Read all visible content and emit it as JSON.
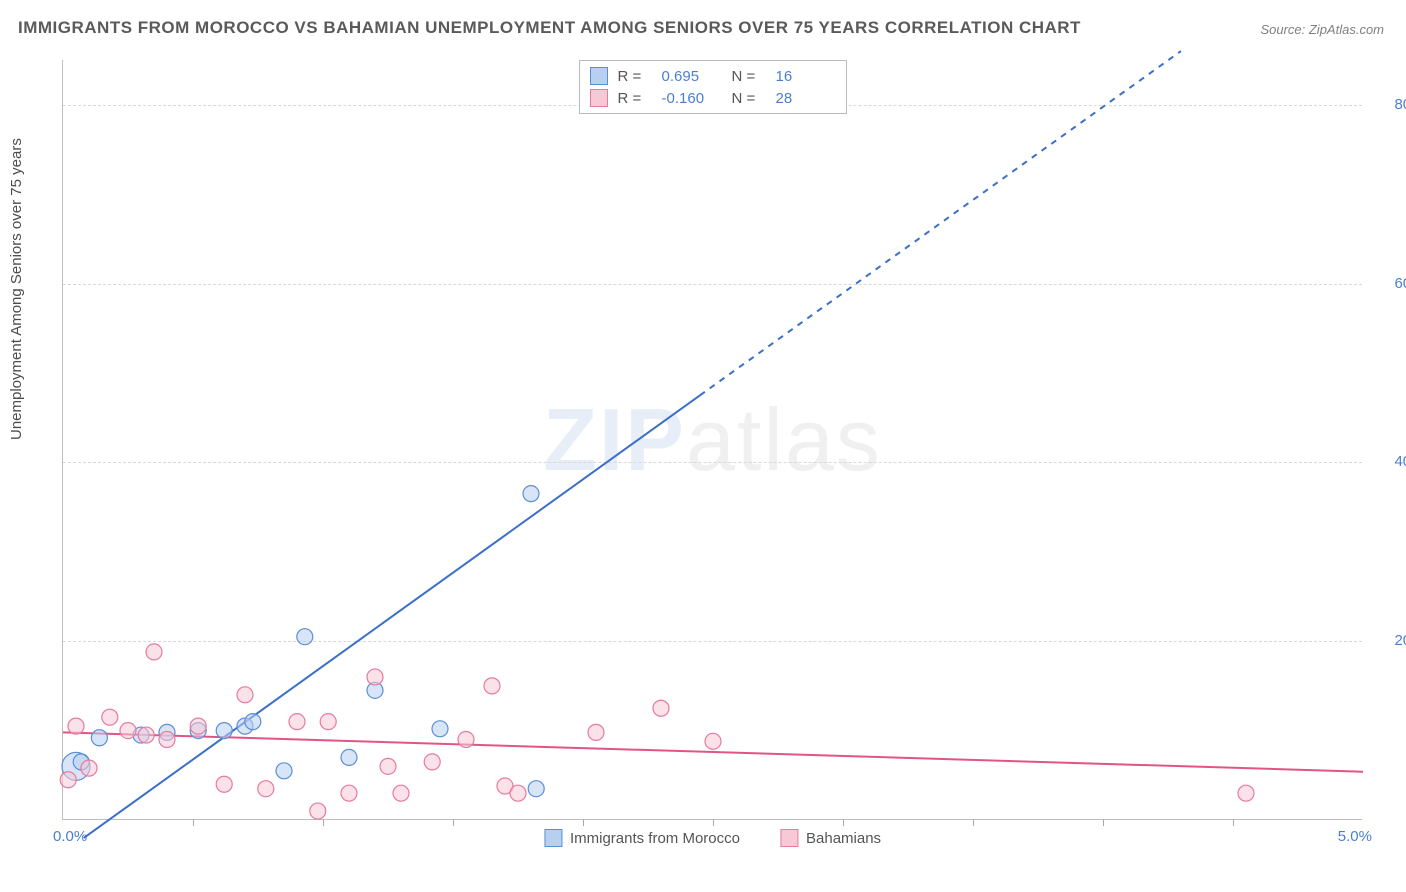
{
  "title": "IMMIGRANTS FROM MOROCCO VS BAHAMIAN UNEMPLOYMENT AMONG SENIORS OVER 75 YEARS CORRELATION CHART",
  "source": "Source: ZipAtlas.com",
  "watermark_a": "ZIP",
  "watermark_b": "atlas",
  "chart": {
    "type": "scatter",
    "xlim": [
      0,
      5.0
    ],
    "ylim": [
      0,
      85.0
    ],
    "x_origin_label": "0.0%",
    "x_max_label": "5.0%",
    "y_ticks": [
      20.0,
      40.0,
      60.0,
      80.0
    ],
    "y_tick_labels": [
      "20.0%",
      "40.0%",
      "60.0%",
      "80.0%"
    ],
    "x_minor_ticks": [
      0.5,
      1.0,
      1.5,
      2.0,
      2.5,
      3.0,
      3.5,
      4.0,
      4.5
    ],
    "ylabel": "Unemployment Among Seniors over 75 years",
    "background_color": "#ffffff",
    "grid_color": "#d8d8d8",
    "axis_color": "#bfbfbf",
    "tick_label_color": "#4a7fd0",
    "marker_radius": 8,
    "marker_stroke_width": 1.2,
    "line_width": 2,
    "series": [
      {
        "key": "morocco",
        "label": "Immigrants from Morocco",
        "fill": "#b8d0ef",
        "stroke": "#5a8fd6",
        "line_color": "#3b6fc9",
        "R": "0.695",
        "N": "16",
        "trend": {
          "x1": 0.08,
          "y1": -2.0,
          "x2": 2.45,
          "y2": 47.5,
          "dash_x2": 4.3,
          "dash_y2": 86.0
        },
        "points": [
          {
            "x": 0.05,
            "y": 6.0,
            "r": 14
          },
          {
            "x": 0.07,
            "y": 6.5
          },
          {
            "x": 0.14,
            "y": 9.2
          },
          {
            "x": 0.3,
            "y": 9.5
          },
          {
            "x": 0.4,
            "y": 9.8
          },
          {
            "x": 0.52,
            "y": 10.0
          },
          {
            "x": 0.62,
            "y": 10.0
          },
          {
            "x": 0.7,
            "y": 10.5
          },
          {
            "x": 0.73,
            "y": 11.0
          },
          {
            "x": 0.85,
            "y": 5.5
          },
          {
            "x": 0.93,
            "y": 20.5
          },
          {
            "x": 1.1,
            "y": 7.0
          },
          {
            "x": 1.2,
            "y": 14.5
          },
          {
            "x": 1.45,
            "y": 10.2
          },
          {
            "x": 1.8,
            "y": 36.5
          },
          {
            "x": 1.82,
            "y": 3.5
          }
        ]
      },
      {
        "key": "bahamians",
        "label": "Bahamians",
        "fill": "#f7c9d6",
        "stroke": "#e77aa0",
        "line_color": "#e25583",
        "R": "-0.160",
        "N": "28",
        "trend": {
          "x1": 0.0,
          "y1": 9.8,
          "x2": 5.0,
          "y2": 5.4
        },
        "points": [
          {
            "x": 0.02,
            "y": 4.5
          },
          {
            "x": 0.05,
            "y": 10.5
          },
          {
            "x": 0.1,
            "y": 5.8
          },
          {
            "x": 0.18,
            "y": 11.5
          },
          {
            "x": 0.25,
            "y": 10.0
          },
          {
            "x": 0.32,
            "y": 9.5
          },
          {
            "x": 0.35,
            "y": 18.8
          },
          {
            "x": 0.4,
            "y": 9.0
          },
          {
            "x": 0.52,
            "y": 10.5
          },
          {
            "x": 0.62,
            "y": 4.0
          },
          {
            "x": 0.7,
            "y": 14.0
          },
          {
            "x": 0.78,
            "y": 3.5
          },
          {
            "x": 0.9,
            "y": 11.0
          },
          {
            "x": 0.98,
            "y": 1.0
          },
          {
            "x": 1.02,
            "y": 11.0
          },
          {
            "x": 1.1,
            "y": 3.0
          },
          {
            "x": 1.2,
            "y": 16.0
          },
          {
            "x": 1.25,
            "y": 6.0
          },
          {
            "x": 1.3,
            "y": 3.0
          },
          {
            "x": 1.42,
            "y": 6.5
          },
          {
            "x": 1.55,
            "y": 9.0
          },
          {
            "x": 1.65,
            "y": 15.0
          },
          {
            "x": 1.7,
            "y": 3.8
          },
          {
            "x": 1.75,
            "y": 3.0
          },
          {
            "x": 2.05,
            "y": 9.8
          },
          {
            "x": 2.3,
            "y": 12.5
          },
          {
            "x": 2.5,
            "y": 8.8
          },
          {
            "x": 4.55,
            "y": 3.0
          }
        ]
      }
    ]
  },
  "legend_top_labels": {
    "R": "R  =",
    "N": "N  ="
  }
}
